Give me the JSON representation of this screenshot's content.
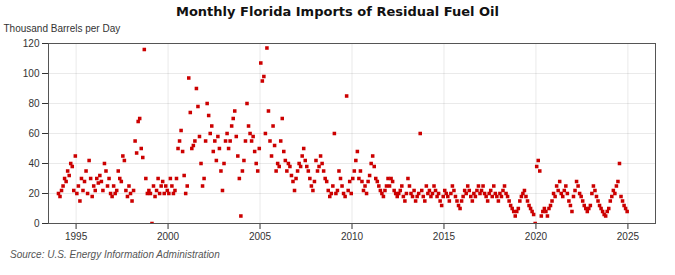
{
  "chart_data": {
    "type": "scatter",
    "title": "Monthly Florida Imports of Residual Fuel Oil",
    "ylabel": "Thousand Barrels per Day",
    "caption": "Source: U.S. Energy Information Administration",
    "color": "#cc0000",
    "marker": "square",
    "grid": true,
    "xlim": [
      1993.5,
      2026.5
    ],
    "ylim": [
      0,
      120
    ],
    "xticks": [
      1995,
      2000,
      2005,
      2010,
      2015,
      2020,
      2025
    ],
    "yticks": [
      0,
      20,
      40,
      60,
      80,
      100,
      120
    ],
    "x": [
      1994.0416666666667,
      1994.125,
      1994.2083333333333,
      1994.2916666666667,
      1994.375,
      1994.4583333333333,
      1994.5416666666667,
      1994.625,
      1994.7083333333333,
      1994.7916666666667,
      1994.875,
      1994.9583333333333,
      1995.0416666666667,
      1995.125,
      1995.2083333333333,
      1995.2916666666667,
      1995.375,
      1995.4583333333333,
      1995.5416666666667,
      1995.625,
      1995.7083333333333,
      1995.7916666666667,
      1995.875,
      1995.9583333333333,
      1996.0416666666667,
      1996.125,
      1996.2083333333333,
      1996.2916666666667,
      1996.375,
      1996.4583333333333,
      1996.5416666666667,
      1996.625,
      1996.7083333333333,
      1996.7916666666667,
      1996.875,
      1996.9583333333333,
      1997.0416666666667,
      1997.125,
      1997.2083333333333,
      1997.2916666666667,
      1997.375,
      1997.4583333333333,
      1997.5416666666667,
      1997.625,
      1997.7083333333333,
      1997.7916666666667,
      1997.875,
      1997.9583333333333,
      1998.0416666666667,
      1998.125,
      1998.2083333333333,
      1998.2916666666667,
      1998.375,
      1998.4583333333333,
      1998.5416666666667,
      1998.625,
      1998.7083333333333,
      1998.7916666666667,
      1998.875,
      1998.9583333333333,
      1999.0416666666667,
      1999.125,
      1999.2083333333333,
      1999.2916666666667,
      1999.375,
      1999.4583333333333,
      1999.5416666666667,
      1999.625,
      1999.7083333333333,
      1999.7916666666667,
      1999.875,
      1999.9583333333333,
      2000.0416666666667,
      2000.125,
      2000.2083333333333,
      2000.2916666666667,
      2000.375,
      2000.4583333333333,
      2000.5416666666667,
      2000.625,
      2000.7083333333333,
      2000.7916666666667,
      2000.875,
      2000.9583333333333,
      2001.0416666666667,
      2001.125,
      2001.2083333333333,
      2001.2916666666667,
      2001.375,
      2001.4583333333333,
      2001.5416666666667,
      2001.625,
      2001.7083333333333,
      2001.7916666666667,
      2001.875,
      2001.9583333333333,
      2002.0416666666667,
      2002.125,
      2002.2083333333333,
      2002.2916666666667,
      2002.375,
      2002.4583333333333,
      2002.5416666666667,
      2002.625,
      2002.7083333333333,
      2002.7916666666667,
      2002.875,
      2002.9583333333333,
      2003.0416666666667,
      2003.125,
      2003.2083333333333,
      2003.2916666666667,
      2003.375,
      2003.4583333333333,
      2003.5416666666667,
      2003.625,
      2003.7083333333333,
      2003.7916666666667,
      2003.875,
      2003.9583333333333,
      2004.0416666666667,
      2004.125,
      2004.2083333333333,
      2004.2916666666667,
      2004.375,
      2004.4583333333333,
      2004.5416666666667,
      2004.625,
      2004.7083333333333,
      2004.7916666666667,
      2004.875,
      2004.9583333333333,
      2005.0416666666667,
      2005.125,
      2005.2083333333333,
      2005.2916666666667,
      2005.375,
      2005.4583333333333,
      2005.5416666666667,
      2005.625,
      2005.7083333333333,
      2005.7916666666667,
      2005.875,
      2005.9583333333333,
      2006.0416666666667,
      2006.125,
      2006.2083333333333,
      2006.2916666666667,
      2006.375,
      2006.4583333333333,
      2006.5416666666667,
      2006.625,
      2006.7083333333333,
      2006.7916666666667,
      2006.875,
      2006.9583333333333,
      2007.0416666666667,
      2007.125,
      2007.2083333333333,
      2007.2916666666667,
      2007.375,
      2007.4583333333333,
      2007.5416666666667,
      2007.625,
      2007.7083333333333,
      2007.7916666666667,
      2007.875,
      2007.9583333333333,
      2008.0416666666667,
      2008.125,
      2008.2083333333333,
      2008.2916666666667,
      2008.375,
      2008.4583333333333,
      2008.5416666666667,
      2008.625,
      2008.7083333333333,
      2008.7916666666667,
      2008.875,
      2008.9583333333333,
      2009.0416666666667,
      2009.125,
      2009.2083333333333,
      2009.2916666666667,
      2009.375,
      2009.4583333333333,
      2009.5416666666667,
      2009.625,
      2009.7083333333333,
      2009.7916666666667,
      2009.875,
      2009.9583333333333,
      2010.0416666666667,
      2010.125,
      2010.2083333333333,
      2010.2916666666667,
      2010.375,
      2010.4583333333333,
      2010.5416666666667,
      2010.625,
      2010.7083333333333,
      2010.7916666666667,
      2010.875,
      2010.9583333333333,
      2011.0416666666667,
      2011.125,
      2011.2083333333333,
      2011.2916666666667,
      2011.375,
      2011.4583333333333,
      2011.5416666666667,
      2011.625,
      2011.7083333333333,
      2011.7916666666667,
      2011.875,
      2011.9583333333333,
      2012.0416666666667,
      2012.125,
      2012.2083333333333,
      2012.2916666666667,
      2012.375,
      2012.4583333333333,
      2012.5416666666667,
      2012.625,
      2012.7083333333333,
      2012.7916666666667,
      2012.875,
      2012.9583333333333,
      2013.0416666666667,
      2013.125,
      2013.2083333333333,
      2013.2916666666667,
      2013.375,
      2013.4583333333333,
      2013.5416666666667,
      2013.625,
      2013.7083333333333,
      2013.7916666666667,
      2013.875,
      2013.9583333333333,
      2014.0416666666667,
      2014.125,
      2014.2083333333333,
      2014.2916666666667,
      2014.375,
      2014.4583333333333,
      2014.5416666666667,
      2014.625,
      2014.7083333333333,
      2014.7916666666667,
      2014.875,
      2014.9583333333333,
      2015.0416666666667,
      2015.125,
      2015.2083333333333,
      2015.2916666666667,
      2015.375,
      2015.4583333333333,
      2015.5416666666667,
      2015.625,
      2015.7083333333333,
      2015.7916666666667,
      2015.875,
      2015.9583333333333,
      2016.0416666666667,
      2016.125,
      2016.2083333333333,
      2016.2916666666667,
      2016.375,
      2016.4583333333333,
      2016.5416666666667,
      2016.625,
      2016.7083333333333,
      2016.7916666666667,
      2016.875,
      2016.9583333333333,
      2017.0416666666667,
      2017.125,
      2017.2083333333333,
      2017.2916666666667,
      2017.375,
      2017.4583333333333,
      2017.5416666666667,
      2017.625,
      2017.7083333333333,
      2017.7916666666667,
      2017.875,
      2017.9583333333333,
      2018.0416666666667,
      2018.125,
      2018.2083333333333,
      2018.2916666666667,
      2018.375,
      2018.4583333333333,
      2018.5416666666667,
      2018.625,
      2018.7083333333333,
      2018.7916666666667,
      2018.875,
      2018.9583333333333,
      2019.0416666666667,
      2019.125,
      2019.2083333333333,
      2019.2916666666667,
      2019.375,
      2019.4583333333333,
      2019.5416666666667,
      2019.625,
      2019.7083333333333,
      2019.7916666666667,
      2019.875,
      2019.9583333333333,
      2020.0416666666667,
      2020.125,
      2020.2083333333333,
      2020.2916666666667,
      2020.375,
      2020.4583333333333,
      2020.5416666666667,
      2020.625,
      2020.7083333333333,
      2020.7916666666667,
      2020.875,
      2020.9583333333333,
      2021.0416666666667,
      2021.125,
      2021.2083333333333,
      2021.2916666666667,
      2021.375,
      2021.4583333333333,
      2021.5416666666667,
      2021.625,
      2021.7083333333333,
      2021.7916666666667,
      2021.875,
      2021.9583333333333,
      2022.0416666666667,
      2022.125,
      2022.2083333333333,
      2022.2916666666667,
      2022.375,
      2022.4583333333333,
      2022.5416666666667,
      2022.625,
      2022.7083333333333,
      2022.7916666666667,
      2022.875,
      2022.9583333333333,
      2023.0416666666667,
      2023.125,
      2023.2083333333333,
      2023.2916666666667,
      2023.375,
      2023.4583333333333,
      2023.5416666666667,
      2023.625,
      2023.7083333333333,
      2023.7916666666667,
      2023.875,
      2023.9583333333333,
      2024.0416666666667,
      2024.125,
      2024.2083333333333,
      2024.2916666666667,
      2024.375,
      2024.4583333333333,
      2024.5416666666667,
      2024.625,
      2024.7083333333333,
      2024.7916666666667,
      2024.875,
      2024.9583333333333
    ],
    "values": [
      20,
      18,
      22,
      25,
      30,
      28,
      35,
      32,
      40,
      38,
      22,
      45,
      20,
      25,
      15,
      30,
      22,
      28,
      35,
      20,
      42,
      30,
      18,
      25,
      22,
      30,
      27,
      32,
      28,
      22,
      40,
      35,
      25,
      30,
      20,
      18,
      25,
      20,
      22,
      35,
      30,
      28,
      45,
      42,
      22,
      18,
      25,
      20,
      15,
      22,
      55,
      47,
      68,
      70,
      50,
      44,
      116,
      30,
      20,
      22,
      20,
      0,
      25,
      18,
      22,
      30,
      20,
      25,
      28,
      20,
      25,
      22,
      20,
      30,
      25,
      20,
      22,
      30,
      50,
      55,
      62,
      48,
      32,
      20,
      25,
      97,
      74,
      50,
      52,
      55,
      90,
      78,
      58,
      40,
      25,
      30,
      55,
      80,
      72,
      60,
      65,
      48,
      55,
      42,
      58,
      50,
      35,
      22,
      40,
      55,
      60,
      50,
      55,
      65,
      70,
      75,
      58,
      45,
      30,
      5,
      35,
      42,
      55,
      80,
      65,
      60,
      55,
      58,
      48,
      40,
      35,
      50,
      107,
      95,
      98,
      60,
      117,
      75,
      55,
      45,
      65,
      52,
      35,
      40,
      38,
      55,
      70,
      48,
      42,
      35,
      40,
      38,
      32,
      28,
      22,
      30,
      35,
      40,
      38,
      45,
      50,
      42,
      38,
      35,
      30,
      25,
      22,
      28,
      42,
      35,
      38,
      45,
      40,
      35,
      30,
      28,
      22,
      18,
      20,
      25,
      60,
      20,
      22,
      35,
      30,
      25,
      20,
      18,
      85,
      22,
      28,
      20,
      30,
      35,
      42,
      48,
      30,
      35,
      28,
      22,
      25,
      20,
      28,
      32,
      40,
      45,
      38,
      30,
      28,
      25,
      22,
      20,
      18,
      22,
      25,
      30,
      25,
      30,
      28,
      22,
      20,
      18,
      20,
      22,
      25,
      18,
      15,
      20,
      30,
      25,
      20,
      18,
      22,
      15,
      18,
      20,
      60,
      22,
      18,
      15,
      25,
      20,
      22,
      18,
      20,
      25,
      22,
      18,
      20,
      15,
      12,
      18,
      22,
      20,
      18,
      15,
      20,
      25,
      22,
      18,
      15,
      12,
      10,
      15,
      18,
      22,
      20,
      25,
      22,
      18,
      15,
      20,
      18,
      22,
      25,
      20,
      22,
      25,
      20,
      18,
      15,
      20,
      22,
      18,
      25,
      20,
      18,
      15,
      20,
      18,
      22,
      25,
      20,
      18,
      15,
      12,
      10,
      8,
      5,
      8,
      10,
      15,
      18,
      20,
      22,
      18,
      15,
      12,
      10,
      8,
      6,
      0,
      38,
      42,
      35,
      5,
      8,
      10,
      8,
      5,
      10,
      12,
      15,
      20,
      18,
      25,
      22,
      28,
      20,
      18,
      22,
      25,
      20,
      15,
      12,
      8,
      18,
      22,
      28,
      25,
      20,
      18,
      15,
      12,
      10,
      8,
      10,
      12,
      20,
      25,
      22,
      18,
      15,
      12,
      10,
      8,
      6,
      5,
      8,
      10,
      15,
      18,
      22,
      20,
      25,
      28,
      40,
      18,
      15,
      12,
      10,
      8
    ]
  }
}
